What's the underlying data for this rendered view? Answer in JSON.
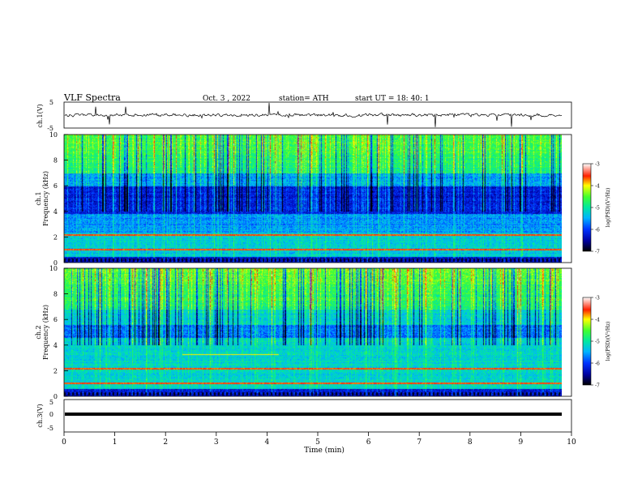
{
  "header": {
    "title": "VLF Spectra",
    "date": "Oct. 3 , 2022",
    "station": "station= ATH",
    "start_ut": "start UT = 18: 40: 1"
  },
  "chart_data": [
    {
      "type": "line",
      "ylabel": "ch.1(V)",
      "ylim": [
        -5,
        5
      ],
      "yticks": [
        "5",
        "-5"
      ],
      "xlim": [
        0,
        10
      ]
    },
    {
      "type": "heatmap",
      "ylabel_top": "ch.1",
      "ylabel": "Frequency (kHz)",
      "ylim": [
        0,
        10
      ],
      "yticks": [
        "10",
        "8",
        "6",
        "4",
        "2",
        "0"
      ],
      "colorbar": {
        "label": "log(PSD)(V²/Hz)",
        "range": [
          -7,
          -3
        ],
        "ticks": [
          "-3",
          "-4",
          "-5",
          "-6",
          "-7"
        ]
      }
    },
    {
      "type": "heatmap",
      "ylabel_top": "ch.2",
      "ylabel": "Frequency (kHz)",
      "ylim": [
        0,
        10
      ],
      "yticks": [
        "10",
        "8",
        "6",
        "4",
        "2",
        "0"
      ],
      "colorbar": {
        "label": "log(PSD)(V²/Hz)",
        "range": [
          -7,
          -3
        ],
        "ticks": [
          "-3",
          "-4",
          "-5",
          "-6",
          "-7"
        ]
      }
    },
    {
      "type": "line",
      "ylabel": "ch.3(V)",
      "ylim": [
        -5,
        5
      ],
      "yticks": [
        "5",
        "0",
        "-5"
      ],
      "xlim": [
        0,
        10
      ],
      "xlabel": "Time (min)",
      "xticks": [
        "0",
        "1",
        "2",
        "3",
        "4",
        "5",
        "6",
        "7",
        "8",
        "9",
        "10"
      ]
    }
  ]
}
